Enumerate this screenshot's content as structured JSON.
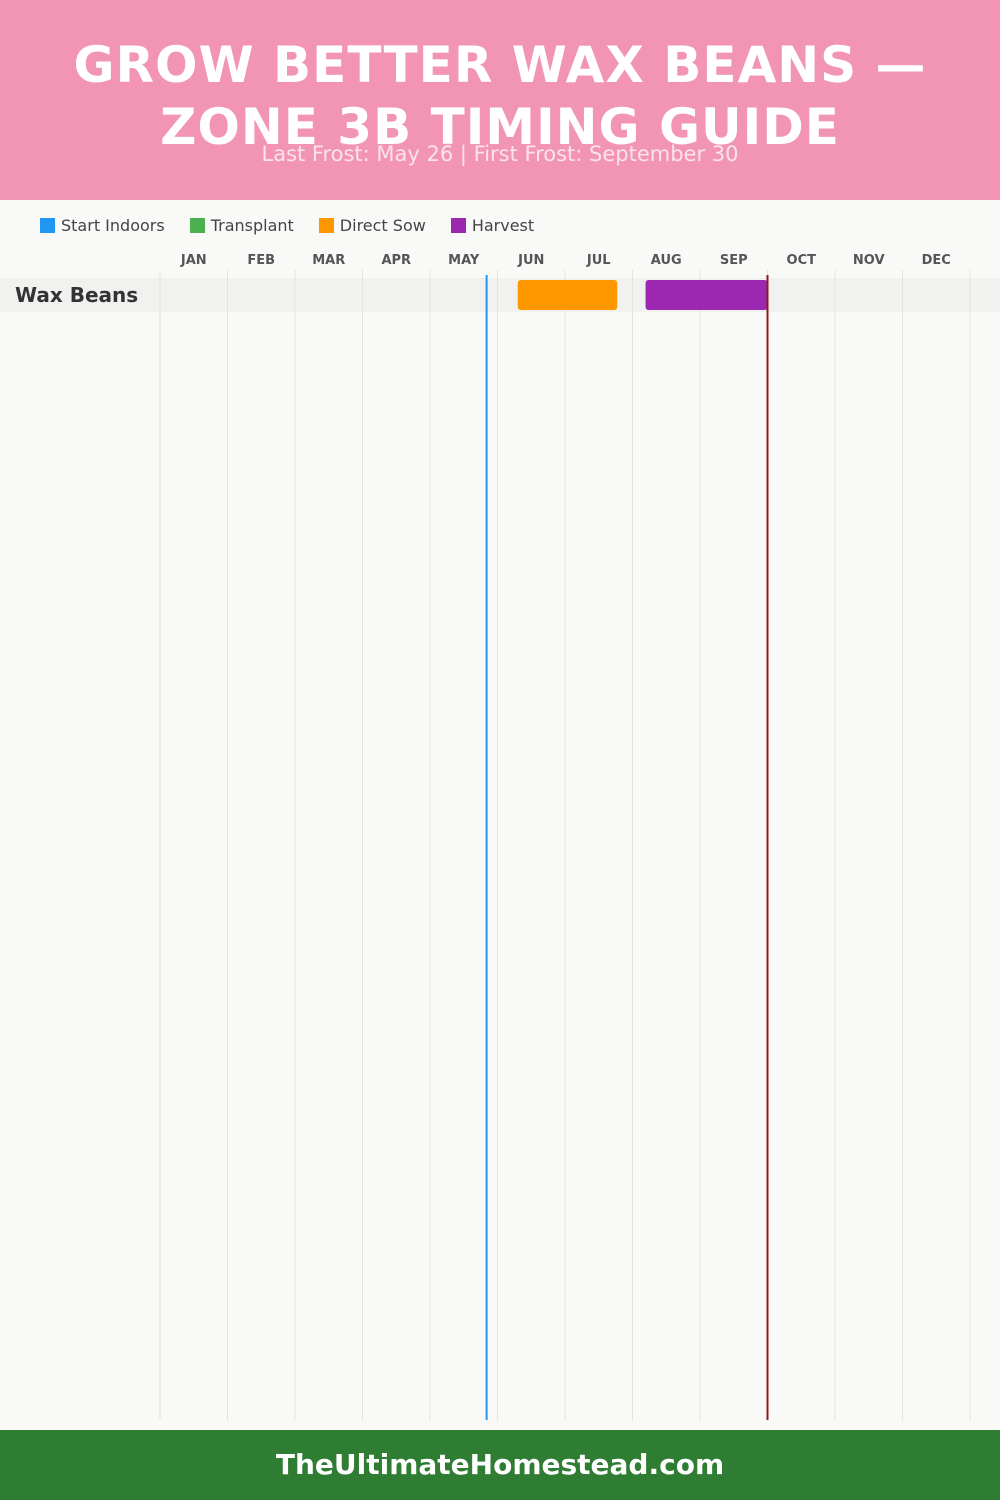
{
  "header": {
    "title": "Grow Better Wax Beans — Zone 3B Timing Guide",
    "subtitle": "Last Frost: May 26 | First Frost: September 30"
  },
  "legend": [
    {
      "label": "Start Indoors",
      "color": "#2196f3"
    },
    {
      "label": "Transplant",
      "color": "#4caf50"
    },
    {
      "label": "Direct Sow",
      "color": "#ff9800"
    },
    {
      "label": "Harvest",
      "color": "#9c27b0"
    }
  ],
  "chart_data": {
    "type": "gantt",
    "months": [
      "JAN",
      "FEB",
      "MAR",
      "APR",
      "MAY",
      "JUN",
      "JUL",
      "AUG",
      "SEP",
      "OCT",
      "NOV",
      "DEC"
    ],
    "last_frost": {
      "month": 5,
      "day": 26,
      "color": "#2196f3"
    },
    "first_frost": {
      "month": 9,
      "day": 30,
      "color": "#8b1a1a"
    },
    "rows": [
      {
        "crop": "Wax Beans",
        "bars": [
          {
            "phase": "Direct Sow",
            "start": {
              "month": 6,
              "day": 9
            },
            "end": {
              "month": 7,
              "day": 24
            },
            "color": "#ff9800"
          },
          {
            "phase": "Harvest",
            "start": {
              "month": 8,
              "day": 6
            },
            "end": {
              "month": 9,
              "day": 30
            },
            "color": "#9c27b0"
          }
        ]
      }
    ]
  },
  "footer": {
    "text": "TheUltimateHomestead.com"
  }
}
